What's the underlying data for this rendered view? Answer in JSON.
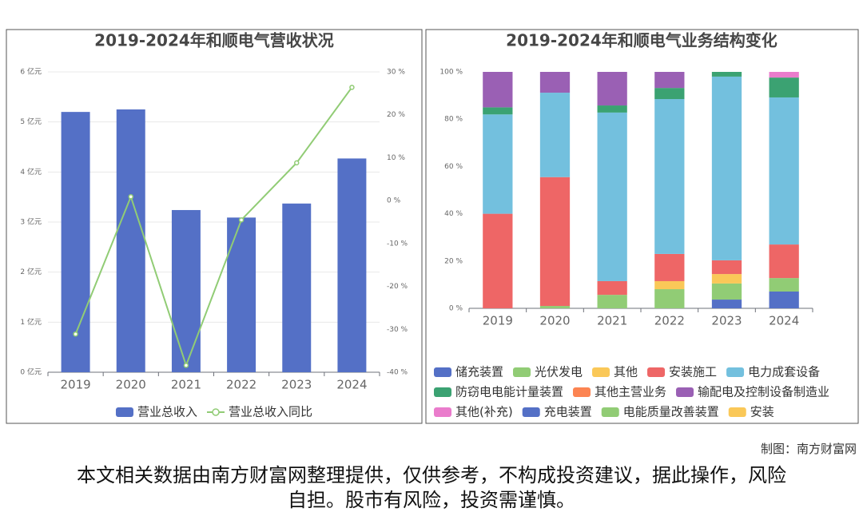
{
  "chart_data": [
    {
      "type": "bar",
      "title": "2019-2024年和顺电气营收状况",
      "categories": [
        "2019",
        "2020",
        "2021",
        "2022",
        "2023",
        "2024"
      ],
      "series": [
        {
          "name": "营业总收入",
          "color": "#5470c6",
          "values": [
            5.2,
            5.25,
            3.24,
            3.09,
            3.37,
            4.27
          ]
        },
        {
          "name": "营业总收入同比",
          "color": "#91cc75",
          "type": "line",
          "axis": "y2",
          "values": [
            -31.1,
            0.9,
            -38.4,
            -4.5,
            8.8,
            26.4
          ]
        }
      ],
      "ylim": [
        0,
        6
      ],
      "yticks": [
        {
          "value": 0,
          "label": "0 亿元"
        },
        {
          "value": 1,
          "label": "1 亿元"
        },
        {
          "value": 2,
          "label": "2 亿元"
        },
        {
          "value": 3,
          "label": "3 亿元"
        },
        {
          "value": 4,
          "label": "4 亿元"
        },
        {
          "value": 5,
          "label": "5 亿元"
        },
        {
          "value": 6,
          "label": "6 亿元"
        }
      ],
      "y2lim": [
        -40,
        30
      ],
      "y2ticks": [
        {
          "value": -40,
          "label": "-40 %"
        },
        {
          "value": -30,
          "label": "-30 %"
        },
        {
          "value": -20,
          "label": "-20 %"
        },
        {
          "value": -10,
          "label": "-10 %"
        },
        {
          "value": 0,
          "label": "0 %"
        },
        {
          "value": 10,
          "label": "10 %"
        },
        {
          "value": 20,
          "label": "20 %"
        },
        {
          "value": 30,
          "label": "30 %"
        }
      ],
      "grid": true
    },
    {
      "type": "bar",
      "stacked": true,
      "title": "2019-2024年和顺电气业务结构变化",
      "categories": [
        "2019",
        "2020",
        "2021",
        "2022",
        "2023",
        "2024"
      ],
      "series": [
        {
          "name": "储充装置",
          "color": "#5470c6",
          "values": [
            null,
            null,
            null,
            null,
            3.7,
            7.1
          ]
        },
        {
          "name": "光伏发电",
          "color": "#91cc75",
          "values": [
            null,
            1,
            5.7,
            8.1,
            6.8,
            5.7
          ]
        },
        {
          "name": "其他",
          "color": "#fac858",
          "values": [
            null,
            null,
            null,
            3.4,
            4,
            null
          ]
        },
        {
          "name": "安装施工",
          "color": "#ee6666",
          "values": [
            40,
            54.5,
            5.8,
            11.5,
            5.8,
            14.2
          ]
        },
        {
          "name": "电力成套设备",
          "color": "#73c0de",
          "values": [
            42,
            35.7,
            71.3,
            65.5,
            77.7,
            62.2
          ]
        },
        {
          "name": "防窃电电能计量装置",
          "color": "#3ba272",
          "values": [
            3,
            null,
            3,
            4.7,
            2,
            8.4
          ]
        },
        {
          "name": "其他主营业务",
          "color": "#fc8452",
          "values": [
            null,
            null,
            null,
            null,
            null,
            null
          ]
        },
        {
          "name": "输配电及控制设备制造业",
          "color": "#9a60b4",
          "values": [
            15,
            8.8,
            14.2,
            6.8,
            null,
            null
          ]
        },
        {
          "name": "其他(补充)",
          "color": "#ea7ccc",
          "values": [
            null,
            null,
            null,
            null,
            null,
            2.4
          ]
        },
        {
          "name": "充电装置",
          "color": "#5470c6",
          "values": [
            null,
            null,
            null,
            null,
            null,
            null
          ]
        },
        {
          "name": "电能质量改善装置",
          "color": "#91cc75",
          "values": [
            null,
            null,
            null,
            null,
            null,
            null
          ]
        },
        {
          "name": "安装",
          "color": "#fac858",
          "values": [
            null,
            null,
            null,
            null,
            null,
            null
          ]
        }
      ],
      "ylim": [
        0,
        100
      ],
      "yticks": [
        {
          "value": 0,
          "label": "0 %"
        },
        {
          "value": 20,
          "label": "20 %"
        },
        {
          "value": 40,
          "label": "40 %"
        },
        {
          "value": 60,
          "label": "60 %"
        },
        {
          "value": 80,
          "label": "80 %"
        },
        {
          "value": 100,
          "label": "100 %"
        }
      ],
      "grid": false
    }
  ],
  "footer": {
    "credit": "制图：南方财富网",
    "disclaimer": "本文相关数据由南方财富网整理提供，仅供参考，不构成投资建议，据此操作，风险自担。股市有风险，投资需谨慎。"
  }
}
